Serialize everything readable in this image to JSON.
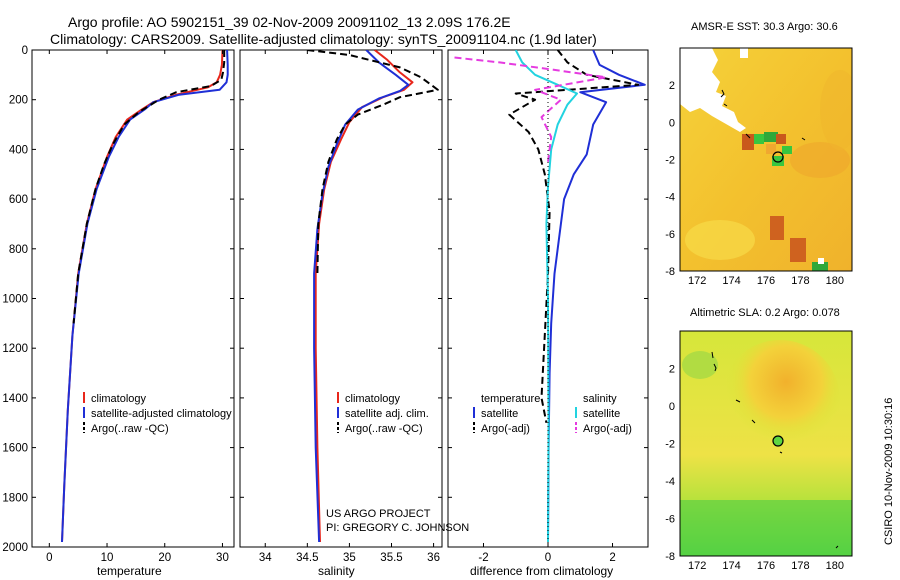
{
  "header": {
    "title_line1": "Argo profile: AO 5902151_39 02-Nov-2009 20091102_13 2.09S 176.2E",
    "title_line2": "Climatology: CARS2009. Satellite-adjusted climatology: synTS_20091104.nc (1.9d later)"
  },
  "colors": {
    "climatology": "#e8261b",
    "satellite": "#1f2fd6",
    "argo": "#000000",
    "satellite_diff": "#22d3e0",
    "argo_adj": "#e53be0"
  },
  "chart_data": [
    {
      "type": "line",
      "id": "temperature",
      "xlabel": "temperature",
      "ylabel": "",
      "xlim": [
        -3,
        32
      ],
      "ylim": [
        2000,
        0
      ],
      "xticks": [
        "0",
        "10",
        "20",
        "30"
      ],
      "xtick_values": [
        0,
        10,
        20,
        30
      ],
      "yticks": [
        "0",
        "200",
        "400",
        "600",
        "800",
        "1000",
        "1200",
        "1400",
        "1600",
        "1800",
        "2000"
      ],
      "ytick_values": [
        0,
        200,
        400,
        600,
        800,
        1000,
        1200,
        1400,
        1600,
        1800,
        2000
      ],
      "legend": [
        "climatology",
        "satellite-adjusted climatology",
        "Argo(..raw -QC)"
      ],
      "series": [
        {
          "name": "climatology",
          "color": "#e8261b",
          "style": "solid",
          "x": [
            30.0,
            29.9,
            29.6,
            29.0,
            27.5,
            22.0,
            18.0,
            16.0,
            13.5,
            11.5,
            10.0,
            8.0,
            6.5,
            5.0,
            4.0,
            3.2,
            2.6,
            2.2
          ],
          "y": [
            0,
            60,
            100,
            130,
            150,
            180,
            210,
            240,
            280,
            350,
            430,
            560,
            700,
            900,
            1150,
            1450,
            1750,
            1980
          ]
        },
        {
          "name": "satellite-adjusted climatology",
          "color": "#1f2fd6",
          "style": "solid",
          "x": [
            30.8,
            30.9,
            30.9,
            30.7,
            29.5,
            22.5,
            18.0,
            16.5,
            14.0,
            12.0,
            10.3,
            8.2,
            6.6,
            5.1,
            4.0,
            3.2,
            2.6,
            2.2
          ],
          "y": [
            0,
            60,
            100,
            130,
            160,
            180,
            210,
            240,
            280,
            350,
            430,
            560,
            700,
            900,
            1150,
            1450,
            1750,
            1980
          ]
        },
        {
          "name": "Argo(..raw -QC)",
          "color": "#000000",
          "style": "dashed",
          "x": [
            30.3,
            30.3,
            30.1,
            29.8,
            28.0,
            22.0,
            19.0,
            15.5,
            13.0,
            11.0,
            9.5,
            8.0,
            6.5,
            5.0,
            4.2
          ],
          "y": [
            0,
            50,
            90,
            120,
            145,
            170,
            200,
            250,
            300,
            380,
            460,
            560,
            700,
            900,
            1100
          ]
        }
      ]
    },
    {
      "type": "line",
      "id": "salinity",
      "xlabel": "salinity",
      "xlim": [
        33.7,
        36.1
      ],
      "ylim": [
        2000,
        0
      ],
      "xticks": [
        "34",
        "34.5",
        "35",
        "35.5",
        "36"
      ],
      "xtick_values": [
        34,
        34.5,
        35,
        35.5,
        36
      ],
      "legend": [
        "climatology",
        "satellite adj. clim.",
        "Argo(..raw -QC)"
      ],
      "series": [
        {
          "name": "climatology",
          "color": "#e8261b",
          "style": "solid",
          "x": [
            35.3,
            35.45,
            35.6,
            35.75,
            35.65,
            35.4,
            35.15,
            35.0,
            34.9,
            34.78,
            34.7,
            34.64,
            34.6,
            34.6,
            34.62,
            34.65
          ],
          "y": [
            0,
            40,
            90,
            130,
            160,
            190,
            230,
            290,
            360,
            450,
            560,
            700,
            900,
            1200,
            1600,
            1980
          ]
        },
        {
          "name": "satellite adj. clim.",
          "color": "#1f2fd6",
          "style": "solid",
          "x": [
            35.2,
            35.35,
            35.55,
            35.7,
            35.6,
            35.35,
            35.1,
            34.95,
            34.85,
            34.75,
            34.68,
            34.62,
            34.58,
            34.58,
            34.6,
            34.64
          ],
          "y": [
            0,
            50,
            100,
            140,
            165,
            195,
            240,
            300,
            380,
            470,
            580,
            720,
            900,
            1200,
            1600,
            1980
          ]
        },
        {
          "name": "Argo(..raw -QC)",
          "color": "#000000",
          "style": "dashed",
          "x": [
            34.5,
            35.0,
            35.6,
            35.85,
            36.05,
            35.6,
            35.4,
            35.1,
            34.95,
            34.85,
            34.75,
            34.68,
            34.63,
            34.62
          ],
          "y": [
            0,
            20,
            70,
            110,
            160,
            190,
            220,
            260,
            300,
            360,
            450,
            560,
            700,
            900
          ]
        }
      ]
    },
    {
      "type": "line",
      "id": "difference",
      "xlabel": "difference from climatology",
      "xlim": [
        -3.1,
        3.1
      ],
      "ylim": [
        2000,
        0
      ],
      "xticks": [
        "-2",
        "0",
        "2"
      ],
      "xtick_values": [
        -2,
        0,
        2
      ],
      "legend_headers": [
        "temperature",
        "salinity"
      ],
      "legend": [
        "satellite",
        "Argo(-adj)",
        "satellite",
        "Argo(-adj)"
      ],
      "series": [
        {
          "name": "temperature satellite",
          "color": "#1f2fd6",
          "style": "solid",
          "x": [
            1.4,
            1.6,
            2.2,
            3.0,
            1.0,
            1.8,
            1.4,
            1.2,
            0.8,
            0.5,
            0.4,
            0.3,
            0.2,
            0.1,
            0.05,
            0.02,
            0.0
          ],
          "y": [
            0,
            60,
            100,
            140,
            170,
            210,
            300,
            420,
            500,
            600,
            700,
            800,
            900,
            1100,
            1300,
            1600,
            1980
          ]
        },
        {
          "name": "temperature Argo(-adj)",
          "color": "#000000",
          "style": "dashed",
          "x": [
            0.3,
            0.6,
            1.2,
            2.8,
            -1.0,
            -0.4,
            -1.2,
            -0.6,
            -0.3,
            -0.1,
            0.05,
            0.0,
            -0.2,
            -0.05
          ],
          "y": [
            0,
            50,
            100,
            140,
            175,
            200,
            260,
            330,
            400,
            500,
            650,
            900,
            1400,
            1500
          ]
        },
        {
          "name": "salinity satellite",
          "color": "#22d3e0",
          "style": "solid",
          "x": [
            -1.0,
            -0.8,
            -0.4,
            0.3,
            0.9,
            0.6,
            0.3,
            0.1,
            0.0,
            -0.05,
            0.0,
            0.02,
            0.0
          ],
          "y": [
            0,
            50,
            100,
            140,
            175,
            220,
            300,
            400,
            550,
            700,
            1000,
            1500,
            1980
          ]
        },
        {
          "name": "salinity Argo(-adj)",
          "color": "#e53be0",
          "style": "dashed",
          "x": [
            -2.9,
            -1.5,
            0.2,
            1.8,
            -0.4,
            0.4,
            -0.2,
            0.1,
            0.0
          ],
          "y": [
            30,
            50,
            80,
            110,
            160,
            200,
            270,
            350,
            450
          ]
        }
      ]
    },
    {
      "type": "heatmap",
      "id": "sst_map",
      "title": "AMSR-E SST: 30.3 Argo: 30.6",
      "xlim": [
        171,
        181
      ],
      "ylim": [
        -8,
        4
      ],
      "xticks": [
        "172",
        "174",
        "176",
        "178",
        "180"
      ],
      "xtick_values": [
        172,
        174,
        176,
        178,
        180
      ],
      "yticks": [
        "2",
        "0",
        "-2",
        "-4",
        "-6",
        "-8"
      ],
      "ytick_values": [
        2,
        0,
        -2,
        -4,
        -6,
        -8
      ],
      "float_position": {
        "lon": 176.2,
        "lat": -2.09
      }
    },
    {
      "type": "heatmap",
      "id": "sla_map",
      "title": "Altimetric SLA: 0.2 Argo: 0.078",
      "xlim": [
        171,
        181
      ],
      "ylim": [
        -8,
        4
      ],
      "xticks": [
        "172",
        "174",
        "176",
        "178",
        "180"
      ],
      "xtick_values": [
        172,
        174,
        176,
        178,
        180
      ],
      "yticks": [
        "2",
        "0",
        "-2",
        "-4",
        "-6",
        "-8"
      ],
      "ytick_values": [
        2,
        0,
        -2,
        -4,
        -6,
        -8
      ],
      "float_position": {
        "lon": 176.2,
        "lat": -2.09
      }
    }
  ],
  "annotations": {
    "project_line1": "US ARGO PROJECT",
    "project_line2": "PI: GREGORY C. JOHNSON",
    "side_label": "CSIRO 10-Nov-2009 10:30:16"
  }
}
